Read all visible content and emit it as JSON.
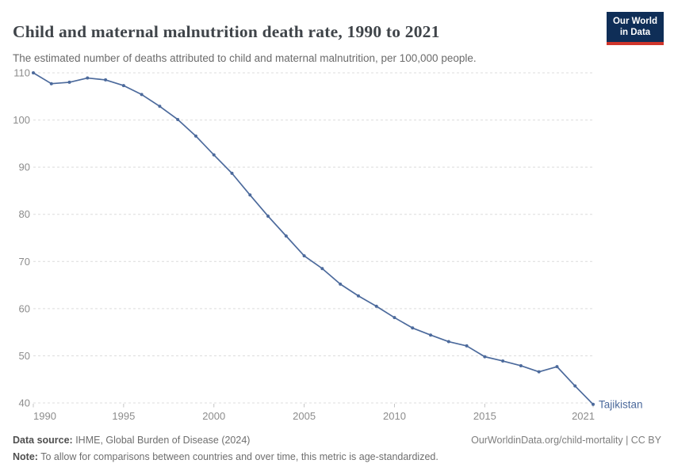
{
  "header": {
    "title": "Child and maternal malnutrition death rate, 1990 to 2021",
    "subtitle": "The estimated number of deaths attributed to child and maternal malnutrition, per 100,000 people.",
    "logo": {
      "line1": "Our World",
      "line2": "in Data",
      "bg_color": "#0f2e57",
      "accent_color": "#d0352b"
    }
  },
  "chart_data": {
    "type": "line",
    "title": "Child and maternal malnutrition death rate, 1990 to 2021",
    "xlabel": "",
    "ylabel": "",
    "xlim": [
      1990,
      2021
    ],
    "ylim": [
      40,
      110
    ],
    "grid": "horizontal-dashed",
    "legend_position": "end-of-line-label",
    "x_ticks": [
      1990,
      1995,
      2000,
      2005,
      2010,
      2015,
      2021
    ],
    "y_ticks": [
      40,
      50,
      60,
      70,
      80,
      90,
      100,
      110
    ],
    "series": [
      {
        "name": "Tajikistan",
        "color": "#4c6a9c",
        "x": [
          1990,
          1991,
          1992,
          1993,
          1994,
          1995,
          1996,
          1997,
          1998,
          1999,
          2000,
          2001,
          2002,
          2003,
          2004,
          2005,
          2006,
          2007,
          2008,
          2009,
          2010,
          2011,
          2012,
          2013,
          2014,
          2015,
          2016,
          2017,
          2018,
          2019,
          2020,
          2021
        ],
        "values": [
          110,
          107.7,
          108.0,
          108.9,
          108.5,
          107.3,
          105.4,
          102.9,
          100.1,
          96.6,
          92.6,
          88.7,
          84.1,
          79.6,
          75.4,
          71.2,
          68.5,
          65.2,
          62.7,
          60.5,
          58.1,
          55.9,
          54.4,
          53.0,
          52.1,
          49.8,
          48.9,
          47.9,
          46.6,
          47.7,
          43.6,
          39.7
        ]
      }
    ],
    "colors": {
      "gridline": "#dcdcdc",
      "tick_label": "#8c8c8c",
      "tick_mark": "#c4c4c4"
    }
  },
  "footer": {
    "source_label": "Data source:",
    "source_value": " IHME, Global Burden of Disease (2024)",
    "attribution": "OurWorldinData.org/child-mortality | CC BY",
    "note_label": "Note:",
    "note_value": " To allow for comparisons between countries and over time, this metric is age-standardized."
  }
}
